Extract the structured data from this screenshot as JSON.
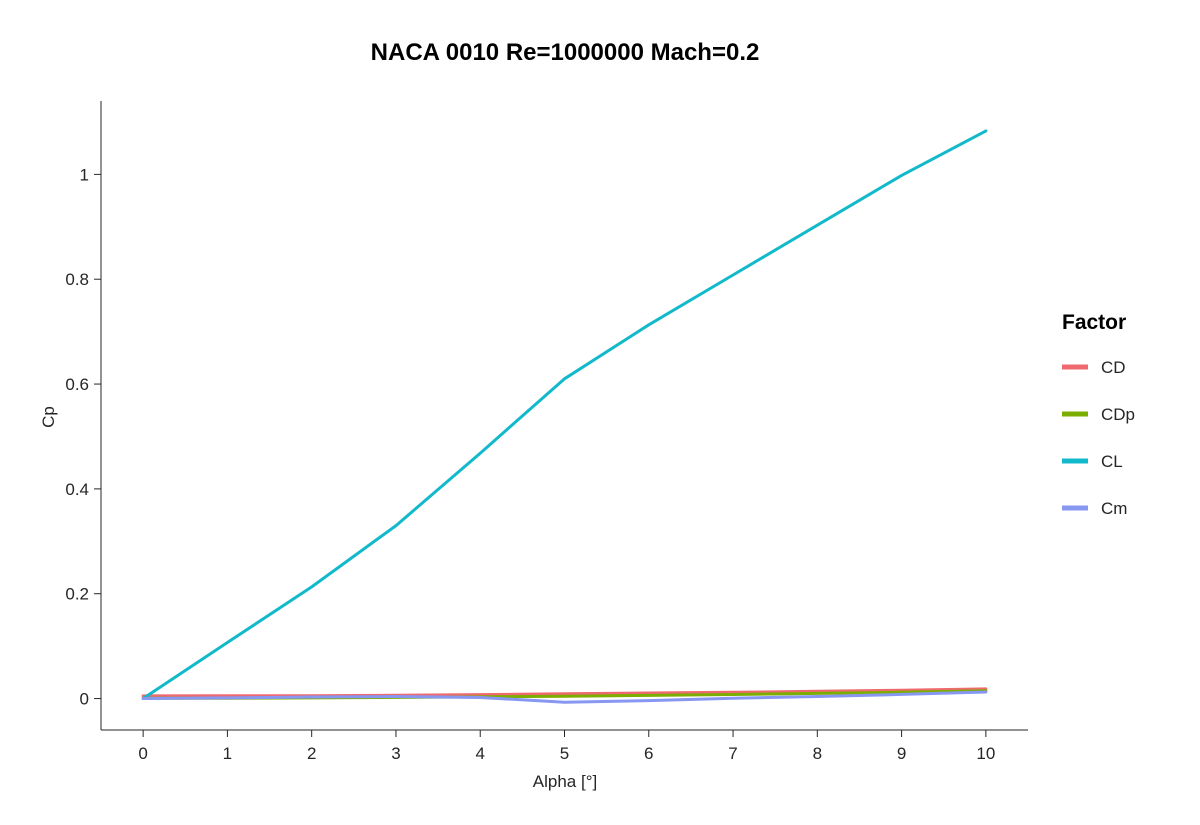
{
  "chart_data": {
    "type": "line",
    "title": "NACA 0010 Re=1000000 Mach=0.2",
    "xlabel": "Alpha [°]",
    "ylabel": "Cp",
    "x": [
      0,
      1,
      2,
      3,
      4,
      5,
      6,
      7,
      8,
      9,
      10
    ],
    "xlim": [
      -0.5,
      10.5
    ],
    "ylim": [
      -0.06,
      1.14
    ],
    "xticks": [
      "0",
      "1",
      "2",
      "3",
      "4",
      "5",
      "6",
      "7",
      "8",
      "9",
      "10"
    ],
    "yticks": [
      "0",
      "0.2",
      "0.4",
      "0.6",
      "0.8",
      "1"
    ],
    "grid": false,
    "legend": {
      "title": "Factor",
      "placement": "right"
    },
    "series": [
      {
        "name": "CD",
        "color": "#EE6A6E",
        "values": [
          0.005,
          0.0052,
          0.0055,
          0.0062,
          0.0075,
          0.009,
          0.0105,
          0.012,
          0.0138,
          0.016,
          0.0185
        ]
      },
      {
        "name": "CDp",
        "color": "#7CAE00",
        "values": [
          0.0005,
          0.0007,
          0.0012,
          0.0022,
          0.0032,
          0.0045,
          0.006,
          0.0078,
          0.0098,
          0.012,
          0.0148
        ]
      },
      {
        "name": "CL",
        "color": "#11B9CB",
        "values": [
          0.0,
          0.107,
          0.213,
          0.33,
          0.468,
          0.61,
          0.713,
          0.808,
          0.903,
          0.998,
          1.083
        ]
      },
      {
        "name": "Cm",
        "color": "#8797F2",
        "values": [
          0.0,
          0.0012,
          0.003,
          0.004,
          0.002,
          -0.007,
          -0.004,
          0.0005,
          0.004,
          0.008,
          0.0125
        ]
      }
    ]
  }
}
